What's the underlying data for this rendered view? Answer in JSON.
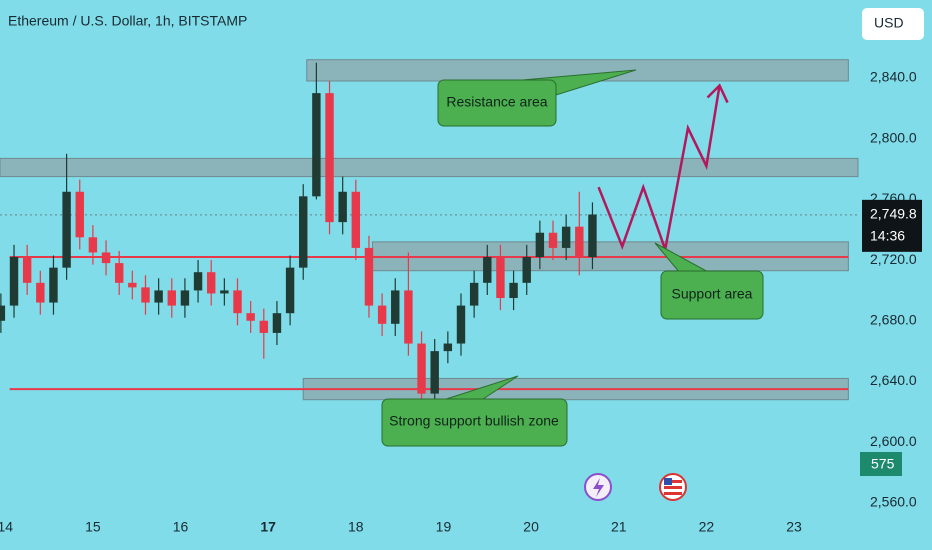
{
  "chart_data": {
    "type": "candlestick",
    "title": "Ethereum / U.S. Dollar, 1h, BITSTAMP",
    "currency": "USD",
    "badge": "575",
    "countdown": "14:36",
    "last_price": {
      "value": 2749.8,
      "label": "2,749.8"
    },
    "up_color": "#1f3b33",
    "down_color": "#e8394a",
    "xlim": [
      13.94,
      23.73
    ],
    "ylim": [
      2554,
      2865
    ],
    "xticks": [
      14,
      15,
      16,
      17,
      18,
      19,
      20,
      21,
      22,
      23
    ],
    "yticks": [
      {
        "value": 2560,
        "label": "2,560.0"
      },
      {
        "value": 2600,
        "label": "2,600.0"
      },
      {
        "value": 2640,
        "label": "2,640.0"
      },
      {
        "value": 2680,
        "label": "2,680.0"
      },
      {
        "value": 2720,
        "label": "2,720.0"
      },
      {
        "value": 2760,
        "label": "2,760.0"
      },
      {
        "value": 2800,
        "label": "2,800.0"
      },
      {
        "value": 2840,
        "label": "2,840.0"
      }
    ],
    "x": [
      13.95,
      14.1,
      14.25,
      14.4,
      14.55,
      14.7,
      14.85,
      15.0,
      15.15,
      15.3,
      15.45,
      15.6,
      15.75,
      15.9,
      16.05,
      16.2,
      16.35,
      16.5,
      16.65,
      16.8,
      16.95,
      17.1,
      17.25,
      17.4,
      17.55,
      17.7,
      17.85,
      18.0,
      18.15,
      18.3,
      18.45,
      18.6,
      18.75,
      18.9,
      19.05,
      19.2,
      19.35,
      19.5,
      19.65,
      19.8,
      19.95,
      20.1,
      20.25,
      20.4,
      20.55,
      20.7
    ],
    "open": [
      2680,
      2690,
      2722,
      2705,
      2692,
      2715,
      2765,
      2735,
      2725,
      2718,
      2705,
      2702,
      2692,
      2700,
      2690,
      2700,
      2712,
      2698,
      2700,
      2685,
      2680,
      2672,
      2685,
      2715,
      2762,
      2830,
      2745,
      2765,
      2728,
      2690,
      2678,
      2700,
      2665,
      2632,
      2660,
      2665,
      2690,
      2705,
      2722,
      2695,
      2705,
      2722,
      2738,
      2728,
      2742,
      2722
    ],
    "high": [
      2698,
      2730,
      2730,
      2713,
      2723,
      2790,
      2773,
      2743,
      2733,
      2726,
      2713,
      2710,
      2708,
      2708,
      2708,
      2720,
      2720,
      2708,
      2708,
      2693,
      2688,
      2693,
      2723,
      2770,
      2850,
      2838,
      2775,
      2773,
      2736,
      2698,
      2708,
      2725,
      2673,
      2668,
      2673,
      2698,
      2713,
      2730,
      2730,
      2713,
      2730,
      2746,
      2746,
      2750,
      2765,
      2758
    ],
    "low": [
      2672,
      2682,
      2697,
      2684,
      2684,
      2707,
      2727,
      2717,
      2710,
      2697,
      2694,
      2684,
      2684,
      2682,
      2682,
      2692,
      2690,
      2690,
      2677,
      2672,
      2655,
      2664,
      2677,
      2707,
      2760,
      2737,
      2737,
      2720,
      2682,
      2670,
      2670,
      2657,
      2612,
      2624,
      2652,
      2657,
      2682,
      2697,
      2687,
      2687,
      2697,
      2714,
      2720,
      2720,
      2710,
      2714
    ],
    "close": [
      2690,
      2722,
      2705,
      2692,
      2715,
      2765,
      2735,
      2725,
      2718,
      2705,
      2702,
      2692,
      2700,
      2690,
      2700,
      2712,
      2698,
      2700,
      2685,
      2680,
      2672,
      2685,
      2715,
      2762,
      2830,
      2745,
      2765,
      2728,
      2690,
      2678,
      2700,
      2665,
      2632,
      2660,
      2665,
      2690,
      2705,
      2722,
      2695,
      2705,
      2722,
      2738,
      2728,
      2742,
      2722,
      2750
    ],
    "zones": [
      {
        "x": [
          17.44,
          23.62
        ],
        "y": [
          2838,
          2852
        ]
      },
      {
        "x": [
          13.94,
          23.73
        ],
        "y": [
          2775,
          2787
        ]
      },
      {
        "x": [
          18.19,
          23.62
        ],
        "y": [
          2713,
          2732
        ]
      },
      {
        "x": [
          17.4,
          23.62
        ],
        "y": [
          2628,
          2642
        ]
      }
    ],
    "zone_color": "#8fa5ab",
    "lines": [
      {
        "x": [
          14.05,
          23.62
        ],
        "y": 2722
      },
      {
        "x": [
          14.05,
          23.62
        ],
        "y": 2635
      }
    ],
    "line_color": "#e8394a",
    "projection": {
      "color": "#b5175c",
      "x": [
        20.77,
        21.04,
        21.28,
        21.53,
        21.79,
        22.0,
        22.15
      ],
      "y": [
        2768,
        2729,
        2768,
        2727,
        2807,
        2782,
        2835
      ]
    },
    "annotations": [
      "Resistance area",
      "Support area",
      "Strong support bullish zone"
    ]
  }
}
